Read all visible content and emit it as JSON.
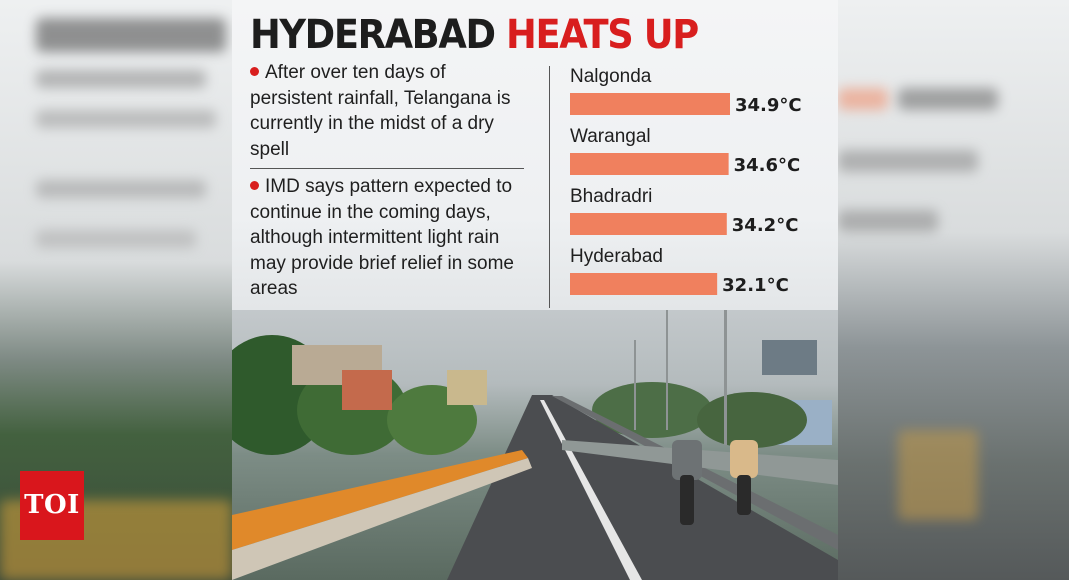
{
  "headline": {
    "part1": "HYDERABAD",
    "part2": "HEATS UP"
  },
  "bullets": [
    "After over ten days of persistent rainfall, Telangana is currently in the midst of a dry spell",
    "IMD says pattern expected to continue in the coming days, although intermittent light rain may provide brief relief in some areas"
  ],
  "chart_data": {
    "type": "bar",
    "orientation": "horizontal",
    "categories": [
      "Nalgonda",
      "Warangal",
      "Bhadradri",
      "Hyderabad"
    ],
    "values": [
      34.9,
      34.6,
      34.2,
      32.1
    ],
    "value_labels": [
      "34.9°C",
      "34.6°C",
      "34.2°C",
      "32.1°C"
    ],
    "unit": "°C",
    "bar_color": "#f0805e",
    "grid": false,
    "legend": "none"
  },
  "logo": {
    "text": "TOI",
    "color": "#d9161c"
  },
  "colors": {
    "accent": "#d81e1e",
    "headline_dark": "#1d1d1d"
  }
}
